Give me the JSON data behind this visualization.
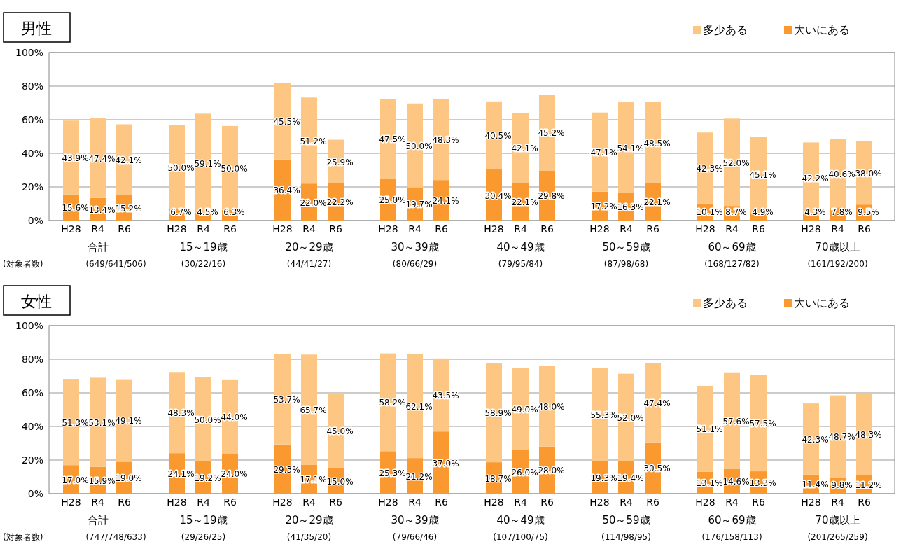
{
  "chart_data": [
    {
      "type": "bar",
      "title": "男性",
      "stacked": true,
      "grid": "y",
      "legend": "top right",
      "categories": [
        "H28",
        "R4",
        "R6",
        "H28",
        "R4",
        "R6",
        "H28",
        "R4",
        "R6",
        "H28",
        "R4",
        "R6",
        "H28",
        "R4",
        "R6",
        "H28",
        "R4",
        "R6",
        "H28",
        "R4",
        "R6",
        "H28",
        "R4",
        "R6"
      ],
      "ylim": [
        0,
        100
      ],
      "yticks": [
        {
          "value": 0,
          "label": "0%"
        },
        {
          "value": 20,
          "label": "20%"
        },
        {
          "value": 40,
          "label": "40%"
        },
        {
          "value": 60,
          "label": "60%"
        },
        {
          "value": 80,
          "label": "80%"
        },
        {
          "value": 100,
          "label": "100%"
        }
      ],
      "series": [
        {
          "name": "大いにある",
          "color": "#f9992f",
          "values": [
            15.6,
            13.4,
            15.2,
            6.7,
            4.5,
            6.3,
            36.4,
            22.0,
            22.2,
            25.0,
            19.7,
            24.1,
            30.4,
            22.1,
            29.8,
            17.2,
            16.3,
            22.1,
            10.1,
            8.7,
            4.9,
            4.3,
            7.8,
            9.5
          ],
          "value_labels": [
            "15.6%",
            "13.4%",
            "15.2%",
            "6.7%",
            "4.5%",
            "6.3%",
            "36.4%",
            "22.0%",
            "22.2%",
            "25.0%",
            "19.7%",
            "24.1%",
            "30.4%",
            "22.1%",
            "29.8%",
            "17.2%",
            "16.3%",
            "22.1%",
            "10.1%",
            "8.7%",
            "4.9%",
            "4.3%",
            "7.8%",
            "9.5%"
          ]
        },
        {
          "name": "多少ある",
          "color": "#fdc683",
          "values": [
            43.9,
            47.4,
            42.1,
            50.0,
            59.1,
            50.0,
            45.5,
            51.2,
            25.9,
            47.5,
            50.0,
            48.3,
            40.5,
            42.1,
            45.2,
            47.1,
            54.1,
            48.5,
            42.3,
            52.0,
            45.1,
            42.2,
            40.6,
            38.0
          ],
          "value_labels": [
            "43.9%",
            "47.4%",
            "42.1%",
            "50.0%",
            "59.1%",
            "50.0%",
            "45.5%",
            "51.2%",
            "25.9%",
            "47.5%",
            "50.0%",
            "48.3%",
            "40.5%",
            "42.1%",
            "45.2%",
            "47.1%",
            "54.1%",
            "48.5%",
            "42.3%",
            "52.0%",
            "45.1%",
            "42.2%",
            "40.6%",
            "38.0%"
          ]
        }
      ],
      "annotations": [
        "(対象者数)",
        "合計",
        "(649/641/506)",
        "15～19歳",
        "(30/22/16)",
        "20～29歳",
        "(44/41/27)",
        "30～39歳",
        "(80/66/29)",
        "40～49歳",
        "(79/95/84)",
        "50～59歳",
        "(87/98/68)",
        "60～69歳",
        "(168/127/82)",
        "70歳以上",
        "(161/192/200)"
      ]
    },
    {
      "type": "bar",
      "title": "女性",
      "stacked": true,
      "grid": "y",
      "legend": "top right",
      "categories": [
        "H28",
        "R4",
        "R6",
        "H28",
        "R4",
        "R6",
        "H28",
        "R4",
        "R6",
        "H28",
        "R4",
        "R6",
        "H28",
        "R4",
        "R6",
        "H28",
        "R4",
        "R6",
        "H28",
        "R4",
        "R6",
        "H28",
        "R4",
        "R6"
      ],
      "ylim": [
        0,
        100
      ],
      "yticks": [
        {
          "value": 0,
          "label": "0%"
        },
        {
          "value": 20,
          "label": "20%"
        },
        {
          "value": 40,
          "label": "40%"
        },
        {
          "value": 60,
          "label": "60%"
        },
        {
          "value": 80,
          "label": "80%"
        },
        {
          "value": 100,
          "label": "100%"
        }
      ],
      "series": [
        {
          "name": "大いにある",
          "color": "#f9992f",
          "values": [
            17.0,
            15.9,
            19.0,
            24.1,
            19.2,
            24.0,
            29.3,
            17.1,
            15.0,
            25.3,
            21.2,
            37.0,
            18.7,
            26.0,
            28.0,
            19.3,
            19.4,
            30.5,
            13.1,
            14.6,
            13.3,
            11.4,
            9.8,
            11.2
          ],
          "value_labels": [
            "17.0%",
            "15.9%",
            "19.0%",
            "24.1%",
            "19.2%",
            "24.0%",
            "29.3%",
            "17.1%",
            "15.0%",
            "25.3%",
            "21.2%",
            "37.0%",
            "18.7%",
            "26.0%",
            "28.0%",
            "19.3%",
            "19.4%",
            "30.5%",
            "13.1%",
            "14.6%",
            "13.3%",
            "11.4%",
            "9.8%",
            "11.2%"
          ]
        },
        {
          "name": "多少ある",
          "color": "#fdc683",
          "values": [
            51.3,
            53.1,
            49.1,
            48.3,
            50.0,
            44.0,
            53.7,
            65.7,
            45.0,
            58.2,
            62.1,
            43.5,
            58.9,
            49.0,
            48.0,
            55.3,
            52.0,
            47.4,
            51.1,
            57.6,
            57.5,
            42.3,
            48.7,
            48.3
          ],
          "value_labels": [
            "51.3%",
            "53.1%",
            "49.1%",
            "48.3%",
            "50.0%",
            "44.0%",
            "53.7%",
            "65.7%",
            "45.0%",
            "58.2%",
            "62.1%",
            "43.5%",
            "58.9%",
            "49.0%",
            "48.0%",
            "55.3%",
            "52.0%",
            "47.4%",
            "51.1%",
            "57.6%",
            "57.5%",
            "42.3%",
            "48.7%",
            "48.3%"
          ]
        }
      ],
      "annotations": [
        "(対象者数)",
        "合計",
        "(747/748/633)",
        "15～19歳",
        "(29/26/25)",
        "20～29歳",
        "(41/35/20)",
        "30～39歳",
        "(79/66/46)",
        "40～49歳",
        "(107/100/75)",
        "50～59歳",
        "(114/98/95)",
        "60～69歳",
        "(176/158/113)",
        "70歳以上",
        "(201/265/259)"
      ]
    }
  ]
}
